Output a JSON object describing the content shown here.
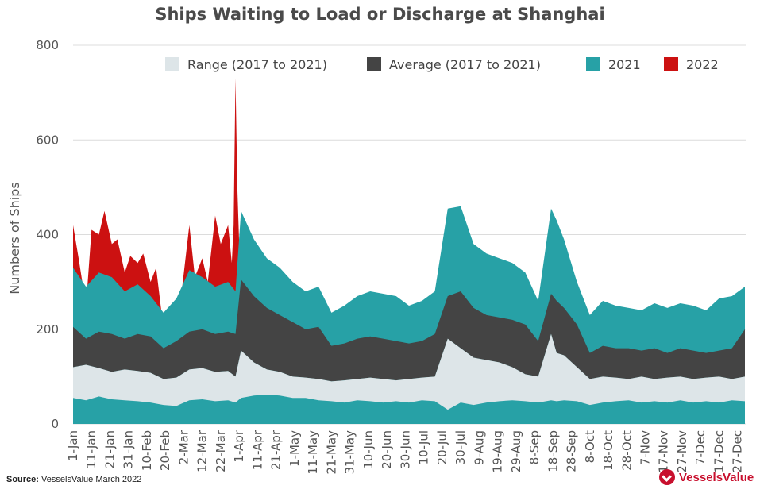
{
  "chart_data": {
    "type": "area",
    "title": "Ships Waiting to Load or Discharge at Shanghai",
    "ylabel": "Numbers of Ships",
    "xlabel": "",
    "ylim": [
      0,
      800
    ],
    "yticks": [
      0,
      200,
      400,
      600,
      800
    ],
    "grid": "horizontal",
    "legend_position": "top",
    "x_day_range": [
      1,
      365
    ],
    "x_ticks": [
      {
        "label": "1-Jan",
        "day": 1
      },
      {
        "label": "11-Jan",
        "day": 11
      },
      {
        "label": "21-Jan",
        "day": 21
      },
      {
        "label": "31-Jan",
        "day": 31
      },
      {
        "label": "10-Feb",
        "day": 41
      },
      {
        "label": "20-Feb",
        "day": 51
      },
      {
        "label": "2-Mar",
        "day": 61
      },
      {
        "label": "12-Mar",
        "day": 71
      },
      {
        "label": "22-Mar",
        "day": 81
      },
      {
        "label": "1-Apr",
        "day": 91
      },
      {
        "label": "11-Apr",
        "day": 101
      },
      {
        "label": "21-Apr",
        "day": 111
      },
      {
        "label": "1-May",
        "day": 121
      },
      {
        "label": "11-May",
        "day": 131
      },
      {
        "label": "21-May",
        "day": 141
      },
      {
        "label": "31-May",
        "day": 151
      },
      {
        "label": "10-Jun",
        "day": 161
      },
      {
        "label": "20-Jun",
        "day": 171
      },
      {
        "label": "30-Jun",
        "day": 181
      },
      {
        "label": "10-Jul",
        "day": 191
      },
      {
        "label": "20-Jul",
        "day": 201
      },
      {
        "label": "30-Jul",
        "day": 211
      },
      {
        "label": "9-Aug",
        "day": 221
      },
      {
        "label": "19-Aug",
        "day": 231
      },
      {
        "label": "29-Aug",
        "day": 241
      },
      {
        "label": "8-Sep",
        "day": 251
      },
      {
        "label": "18-Sep",
        "day": 261
      },
      {
        "label": "28-Sep",
        "day": 271
      },
      {
        "label": "8-Oct",
        "day": 281
      },
      {
        "label": "18-Oct",
        "day": 291
      },
      {
        "label": "28-Oct",
        "day": 301
      },
      {
        "label": "7-Nov",
        "day": 311
      },
      {
        "label": "17-Nov",
        "day": 321
      },
      {
        "label": "27-Nov",
        "day": 331
      },
      {
        "label": "7-Dec",
        "day": 341
      },
      {
        "label": "17-Dec",
        "day": 351
      },
      {
        "label": "27-Dec",
        "day": 361
      }
    ],
    "series": [
      {
        "name": "Range (2017 to 2021)",
        "color": "#dde5e8",
        "kind": "band",
        "x": [
          1,
          8,
          15,
          22,
          29,
          36,
          43,
          50,
          57,
          64,
          71,
          78,
          85,
          89,
          92,
          99,
          106,
          113,
          120,
          127,
          134,
          141,
          148,
          155,
          162,
          169,
          176,
          183,
          190,
          197,
          204,
          211,
          218,
          225,
          232,
          239,
          246,
          253,
          260,
          263,
          267,
          274,
          281,
          288,
          295,
          302,
          309,
          316,
          323,
          330,
          337,
          344,
          351,
          358,
          365
        ],
        "low": [
          55,
          50,
          58,
          52,
          50,
          48,
          45,
          40,
          38,
          50,
          52,
          48,
          50,
          45,
          55,
          60,
          62,
          60,
          55,
          55,
          50,
          48,
          45,
          50,
          48,
          45,
          48,
          45,
          50,
          48,
          30,
          45,
          40,
          45,
          48,
          50,
          48,
          45,
          50,
          48,
          50,
          48,
          40,
          45,
          48,
          50,
          45,
          48,
          45,
          50,
          45,
          48,
          45,
          50,
          48
        ],
        "high": [
          120,
          125,
          118,
          110,
          115,
          112,
          108,
          95,
          98,
          115,
          118,
          110,
          112,
          100,
          155,
          130,
          115,
          110,
          100,
          98,
          95,
          90,
          92,
          95,
          98,
          95,
          92,
          95,
          98,
          100,
          180,
          160,
          140,
          135,
          130,
          120,
          105,
          100,
          190,
          150,
          145,
          120,
          95,
          100,
          98,
          95,
          100,
          95,
          98,
          100,
          95,
          98,
          100,
          95,
          100
        ]
      },
      {
        "name": "Average (2017 to 2021)",
        "color": "#444444",
        "kind": "band_over_range",
        "x": [
          1,
          8,
          15,
          22,
          29,
          36,
          43,
          50,
          57,
          64,
          71,
          78,
          85,
          89,
          92,
          99,
          106,
          113,
          120,
          127,
          134,
          141,
          148,
          155,
          162,
          169,
          176,
          183,
          190,
          197,
          204,
          211,
          218,
          225,
          232,
          239,
          246,
          253,
          260,
          263,
          267,
          274,
          281,
          288,
          295,
          302,
          309,
          316,
          323,
          330,
          337,
          344,
          351,
          358,
          365
        ],
        "values": [
          205,
          180,
          195,
          190,
          180,
          190,
          185,
          160,
          175,
          195,
          200,
          190,
          195,
          190,
          305,
          270,
          245,
          230,
          215,
          200,
          205,
          165,
          170,
          180,
          185,
          180,
          175,
          170,
          175,
          190,
          270,
          280,
          245,
          230,
          225,
          220,
          210,
          175,
          275,
          260,
          245,
          210,
          150,
          165,
          160,
          160,
          155,
          160,
          150,
          160,
          155,
          150,
          155,
          160,
          200
        ]
      },
      {
        "name": "2021",
        "color": "#27a1a6",
        "kind": "area",
        "x": [
          1,
          8,
          15,
          22,
          29,
          36,
          43,
          50,
          57,
          64,
          71,
          78,
          85,
          89,
          92,
          99,
          106,
          113,
          120,
          127,
          134,
          141,
          148,
          155,
          162,
          169,
          176,
          183,
          190,
          197,
          204,
          211,
          218,
          225,
          232,
          239,
          246,
          253,
          260,
          263,
          267,
          274,
          281,
          288,
          295,
          302,
          309,
          316,
          323,
          330,
          337,
          344,
          351,
          358,
          365
        ],
        "values": [
          330,
          290,
          320,
          310,
          280,
          295,
          270,
          235,
          265,
          325,
          310,
          290,
          300,
          280,
          450,
          390,
          350,
          330,
          300,
          280,
          290,
          235,
          250,
          270,
          280,
          275,
          270,
          250,
          260,
          280,
          455,
          460,
          380,
          360,
          350,
          340,
          320,
          260,
          455,
          430,
          390,
          300,
          230,
          260,
          250,
          245,
          240,
          255,
          245,
          255,
          250,
          240,
          265,
          270,
          290
        ]
      },
      {
        "name": "2022",
        "color": "#cc1111",
        "kind": "area",
        "x": [
          1,
          4,
          8,
          11,
          15,
          18,
          22,
          25,
          29,
          32,
          36,
          39,
          43,
          46,
          50,
          53,
          57,
          60,
          64,
          67,
          71,
          74,
          78,
          81,
          85,
          87,
          88,
          89,
          90,
          91
        ],
        "values": [
          420,
          350,
          250,
          410,
          400,
          450,
          380,
          390,
          320,
          355,
          340,
          360,
          300,
          330,
          200,
          240,
          250,
          285,
          420,
          310,
          350,
          300,
          440,
          380,
          420,
          340,
          420,
          730,
          500,
          380
        ]
      }
    ],
    "source_label": "Source:",
    "source_text": "VesselsValue March 2022",
    "brand": "VesselsValue"
  }
}
